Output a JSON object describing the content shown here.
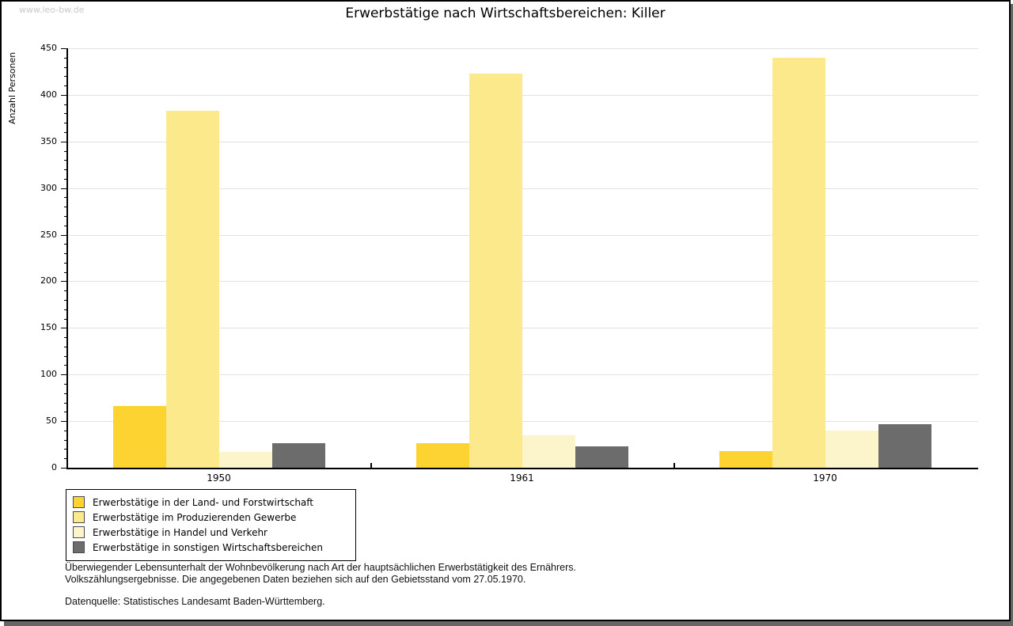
{
  "watermark": "www.leo-bw.de",
  "title": "Erwerbstätige nach Wirtschaftsbereichen: Killer",
  "chart_data": {
    "type": "bar",
    "title": "Erwerbstätige nach Wirtschaftsbereichen: Killer",
    "xlabel": "",
    "ylabel": "Anzahl Personen",
    "categories": [
      "1950",
      "1961",
      "1970"
    ],
    "series": [
      {
        "name": "Erwerbstätige in der Land- und Forstwirtschaft",
        "color": "#fcd330",
        "values": [
          66,
          26,
          18
        ]
      },
      {
        "name": "Erwerbstätige im Produzierenden Gewerbe",
        "color": "#fce98b",
        "values": [
          383,
          423,
          440
        ]
      },
      {
        "name": "Erwerbstätige in Handel und Verkehr",
        "color": "#fcf4ca",
        "values": [
          17,
          35,
          40
        ]
      },
      {
        "name": "Erwerbstätige in sonstigen Wirtschaftsbereichen",
        "color": "#6c6c6c",
        "values": [
          26,
          23,
          47
        ]
      }
    ],
    "ylim": [
      0,
      450
    ],
    "ytick_step": 50,
    "minor_tick_step": 10,
    "grid": true,
    "legend_position": "bottom-left",
    "colors": {
      "axis": "#000000",
      "gridline": "#e2e2e2",
      "page_shadow": "#666666",
      "watermark_text": "#c9c9c9"
    }
  },
  "notes": {
    "line1": "Überwiegender Lebensunterhalt der Wohnbevölkerung nach Art der hauptsächlichen Erwerbstätigkeit des Ernährers.",
    "line2": "Volkszählungsergebnisse. Die angegebenen Daten beziehen sich auf den Gebietsstand vom 27.05.1970.",
    "source": "Datenquelle: Statistisches Landesamt Baden-Württemberg."
  }
}
